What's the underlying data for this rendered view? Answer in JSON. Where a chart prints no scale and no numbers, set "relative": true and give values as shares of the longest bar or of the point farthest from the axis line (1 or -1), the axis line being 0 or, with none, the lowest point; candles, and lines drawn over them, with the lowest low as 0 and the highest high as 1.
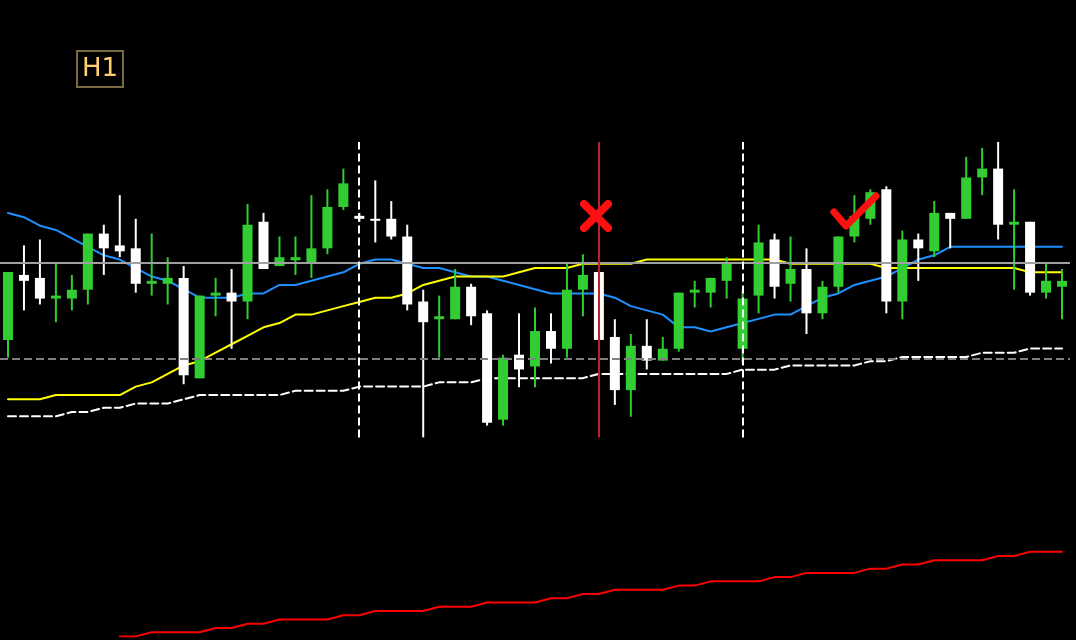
{
  "chart_data": [
    {
      "type": "candlestick",
      "title": "H1",
      "relative": true,
      "categories": [
        null,
        null,
        null,
        null,
        null,
        null,
        null,
        null,
        null,
        null,
        null,
        null,
        null,
        null,
        null,
        null,
        null,
        null,
        null,
        null,
        null,
        null,
        null,
        null,
        null,
        null,
        null,
        null,
        null,
        null,
        null,
        null,
        null,
        null,
        null,
        null,
        null,
        null,
        null,
        null,
        null,
        null,
        null,
        null,
        null,
        null,
        null,
        null,
        null,
        null,
        null,
        null,
        null,
        null,
        null,
        null,
        null,
        null,
        null,
        null,
        null,
        null,
        null,
        null,
        null,
        null,
        null
      ],
      "ohlc": [
        [
          0.33,
          0.56,
          0.27,
          0.56
        ],
        [
          0.55,
          0.65,
          0.43,
          0.53
        ],
        [
          0.54,
          0.67,
          0.45,
          0.47
        ],
        [
          0.47,
          0.59,
          0.39,
          0.48
        ],
        [
          0.47,
          0.55,
          0.43,
          0.5
        ],
        [
          0.5,
          0.69,
          0.45,
          0.69
        ],
        [
          0.69,
          0.72,
          0.55,
          0.64
        ],
        [
          0.65,
          0.82,
          0.61,
          0.63
        ],
        [
          0.64,
          0.74,
          0.49,
          0.52
        ],
        [
          0.52,
          0.69,
          0.48,
          0.53
        ],
        [
          0.52,
          0.61,
          0.45,
          0.54
        ],
        [
          0.54,
          0.58,
          0.18,
          0.21
        ],
        [
          0.2,
          0.48,
          0.2,
          0.48
        ],
        [
          0.48,
          0.54,
          0.41,
          0.49
        ],
        [
          0.49,
          0.57,
          0.3,
          0.46
        ],
        [
          0.46,
          0.79,
          0.4,
          0.72
        ],
        [
          0.73,
          0.76,
          0.57,
          0.57
        ],
        [
          0.58,
          0.68,
          0.58,
          0.61
        ],
        [
          0.6,
          0.68,
          0.55,
          0.61
        ],
        [
          0.59,
          0.82,
          0.54,
          0.64
        ],
        [
          0.64,
          0.84,
          0.62,
          0.78
        ],
        [
          0.78,
          0.91,
          0.77,
          0.86
        ],
        [
          0.75,
          0.76,
          0.73,
          0.74
        ],
        [
          0.74,
          0.87,
          0.66,
          0.74
        ],
        [
          0.74,
          0.8,
          0.67,
          0.68
        ],
        [
          0.68,
          0.72,
          0.43,
          0.45
        ],
        [
          0.46,
          0.5,
          0,
          0.39
        ],
        [
          0.4,
          0.48,
          0.27,
          0.41
        ],
        [
          0.4,
          0.57,
          0.4,
          0.51
        ],
        [
          0.51,
          0.52,
          0.38,
          0.41
        ],
        [
          0.42,
          0.43,
          0.04,
          0.05
        ],
        [
          0.06,
          0.28,
          0.04,
          0.27
        ],
        [
          0.28,
          0.42,
          0.17,
          0.23
        ],
        [
          0.24,
          0.44,
          0.17,
          0.36
        ],
        [
          0.36,
          0.42,
          0.25,
          0.3
        ],
        [
          0.3,
          0.59,
          0.27,
          0.5
        ],
        [
          0.5,
          0.62,
          0.41,
          0.55
        ],
        [
          0.56,
          0.57,
          0.33,
          0.33
        ],
        [
          0.34,
          0.4,
          0.11,
          0.16
        ],
        [
          0.16,
          0.35,
          0.07,
          0.31
        ],
        [
          0.31,
          0.4,
          0.23,
          0.26
        ],
        [
          0.26,
          0.34,
          0.26,
          0.3
        ],
        [
          0.3,
          0.49,
          0.29,
          0.49
        ],
        [
          0.49,
          0.53,
          0.44,
          0.5
        ],
        [
          0.49,
          0.54,
          0.44,
          0.54
        ],
        [
          0.53,
          0.61,
          0.47,
          0.59
        ],
        [
          0.3,
          0.5,
          0.25,
          0.47
        ],
        [
          0.48,
          0.72,
          0.42,
          0.66
        ],
        [
          0.67,
          0.69,
          0.47,
          0.51
        ],
        [
          0.52,
          0.68,
          0.46,
          0.57
        ],
        [
          0.57,
          0.64,
          0.35,
          0.42
        ],
        [
          0.42,
          0.53,
          0.4,
          0.51
        ],
        [
          0.51,
          0.68,
          0.49,
          0.68
        ],
        [
          0.68,
          0.82,
          0.66,
          0.75
        ],
        [
          0.74,
          0.84,
          0.72,
          0.83
        ],
        [
          0.84,
          0.85,
          0.42,
          0.46
        ],
        [
          0.46,
          0.7,
          0.4,
          0.67
        ],
        [
          0.67,
          0.69,
          0.53,
          0.64
        ],
        [
          0.63,
          0.8,
          0.61,
          0.76
        ],
        [
          0.76,
          0.76,
          0.64,
          0.74
        ],
        [
          0.74,
          0.95,
          0.74,
          0.88
        ],
        [
          0.88,
          0.98,
          0.82,
          0.91
        ],
        [
          0.91,
          1,
          0.67,
          0.72
        ],
        [
          0.72,
          0.84,
          0.5,
          0.73
        ],
        [
          0.73,
          0.73,
          0.48,
          0.49
        ],
        [
          0.49,
          0.59,
          0.47,
          0.53
        ],
        [
          0.51,
          0.57,
          0.4,
          0.53
        ]
      ],
      "colors": [
        "#32cd32",
        "#ffffff",
        "#ffffff",
        "#32cd32",
        "#32cd32",
        "#32cd32",
        "#ffffff",
        "#ffffff",
        "#ffffff",
        "#32cd32",
        "#32cd32",
        "#ffffff",
        "#32cd32",
        "#32cd32",
        "#ffffff",
        "#32cd32",
        "#ffffff",
        "#32cd32",
        "#32cd32",
        "#32cd32",
        "#32cd32",
        "#32cd32",
        "#ffffff",
        "#ffffff",
        "#ffffff",
        "#ffffff",
        "#ffffff",
        "#32cd32",
        "#32cd32",
        "#ffffff",
        "#ffffff",
        "#32cd32",
        "#ffffff",
        "#32cd32",
        "#ffffff",
        "#32cd32",
        "#32cd32",
        "#ffffff",
        "#ffffff",
        "#32cd32",
        "#ffffff",
        "#32cd32",
        "#32cd32",
        "#32cd32",
        "#32cd32",
        "#32cd32",
        "#32cd32",
        "#32cd32",
        "#ffffff",
        "#32cd32",
        "#ffffff",
        "#32cd32",
        "#32cd32",
        "#32cd32",
        "#32cd32",
        "#ffffff",
        "#32cd32",
        "#ffffff",
        "#32cd32",
        "#ffffff",
        "#32cd32",
        "#32cd32",
        "#ffffff",
        "#32cd32",
        "#ffffff",
        "#32cd32",
        "#32cd32"
      ],
      "ref_lines": [
        {
          "axis": "y",
          "value": 0.59,
          "color": "#a0a0a0",
          "line_style": "solid"
        },
        {
          "axis": "y",
          "value": 0.27,
          "color": "#808080",
          "line_style": "dashed"
        }
      ]
    },
    {
      "type": "line",
      "relative": true,
      "categories": [
        null,
        null,
        null,
        null,
        null,
        null,
        null,
        null,
        null,
        null,
        null,
        null,
        null,
        null,
        null,
        null,
        null,
        null,
        null,
        null,
        null,
        null,
        null,
        null,
        null,
        null,
        null,
        null,
        null,
        null,
        null,
        null,
        null,
        null,
        null,
        null,
        null,
        null,
        null,
        null,
        null,
        null,
        null,
        null,
        null,
        null,
        null,
        null,
        null,
        null,
        null,
        null,
        null,
        null,
        null,
        null,
        null,
        null,
        null,
        null,
        null,
        null,
        null,
        null,
        null,
        null,
        null
      ],
      "series": [
        {
          "color": "#1e90ff",
          "values": [
            1.0,
            0.99,
            0.97,
            0.96,
            0.94,
            0.92,
            0.9,
            0.89,
            0.87,
            0.85,
            0.84,
            0.82,
            0.8,
            0.8,
            0.8,
            0.81,
            0.81,
            0.83,
            0.83,
            0.84,
            0.85,
            0.86,
            0.88,
            0.89,
            0.89,
            0.88,
            0.87,
            0.87,
            0.86,
            0.85,
            0.85,
            0.84,
            0.83,
            0.82,
            0.81,
            0.81,
            0.81,
            0.81,
            0.8,
            0.78,
            0.77,
            0.76,
            0.73,
            0.73,
            0.72,
            0.73,
            0.74,
            0.75,
            0.76,
            0.76,
            0.78,
            0.8,
            0.81,
            0.83,
            0.84,
            0.85,
            0.87,
            0.89,
            0.9,
            0.92,
            0.92,
            0.92,
            0.92,
            0.92,
            0.92,
            0.92,
            0.92
          ]
        },
        {
          "color": "#ffff00",
          "values": [
            0.56,
            0.56,
            0.56,
            0.57,
            0.57,
            0.57,
            0.57,
            0.57,
            0.59,
            0.6,
            0.62,
            0.64,
            0.65,
            0.67,
            0.69,
            0.71,
            0.73,
            0.74,
            0.76,
            0.76,
            0.77,
            0.78,
            0.79,
            0.8,
            0.8,
            0.81,
            0.83,
            0.84,
            0.85,
            0.85,
            0.85,
            0.85,
            0.86,
            0.87,
            0.87,
            0.87,
            0.88,
            0.88,
            0.88,
            0.88,
            0.89,
            0.89,
            0.89,
            0.89,
            0.89,
            0.89,
            0.89,
            0.89,
            0.89,
            0.88,
            0.88,
            0.88,
            0.88,
            0.88,
            0.88,
            0.87,
            0.87,
            0.87,
            0.87,
            0.87,
            0.87,
            0.87,
            0.87,
            0.87,
            0.86,
            0.86,
            0.86
          ]
        },
        {
          "color": "#ffffff",
          "line_style": "dashed",
          "values": [
            0.52,
            0.52,
            0.52,
            0.52,
            0.53,
            0.53,
            0.54,
            0.54,
            0.55,
            0.55,
            0.55,
            0.56,
            0.57,
            0.57,
            0.57,
            0.57,
            0.57,
            0.57,
            0.58,
            0.58,
            0.58,
            0.58,
            0.59,
            0.59,
            0.59,
            0.59,
            0.59,
            0.6,
            0.6,
            0.6,
            0.61,
            0.61,
            0.61,
            0.61,
            0.61,
            0.61,
            0.61,
            0.62,
            0.62,
            0.62,
            0.62,
            0.62,
            0.62,
            0.62,
            0.62,
            0.62,
            0.63,
            0.63,
            0.63,
            0.64,
            0.64,
            0.64,
            0.64,
            0.64,
            0.65,
            0.65,
            0.66,
            0.66,
            0.66,
            0.66,
            0.66,
            0.67,
            0.67,
            0.67,
            0.68,
            0.68,
            0.68
          ]
        },
        {
          "color": "#ff0000",
          "values": [
            null,
            null,
            null,
            null,
            null,
            null,
            null,
            0,
            0,
            0.01,
            0.01,
            0.01,
            0.01,
            0.02,
            0.02,
            0.03,
            0.03,
            0.04,
            0.04,
            0.04,
            0.04,
            0.05,
            0.05,
            0.06,
            0.06,
            0.06,
            0.06,
            0.07,
            0.07,
            0.07,
            0.08,
            0.08,
            0.08,
            0.08,
            0.09,
            0.09,
            0.1,
            0.1,
            0.11,
            0.11,
            0.11,
            0.11,
            0.12,
            0.12,
            0.13,
            0.13,
            0.13,
            0.13,
            0.14,
            0.14,
            0.15,
            0.15,
            0.15,
            0.15,
            0.16,
            0.16,
            0.17,
            0.17,
            0.18,
            0.18,
            0.18,
            0.18,
            0.19,
            0.19,
            0.2,
            0.2,
            0.2
          ]
        }
      ]
    }
  ]
}
